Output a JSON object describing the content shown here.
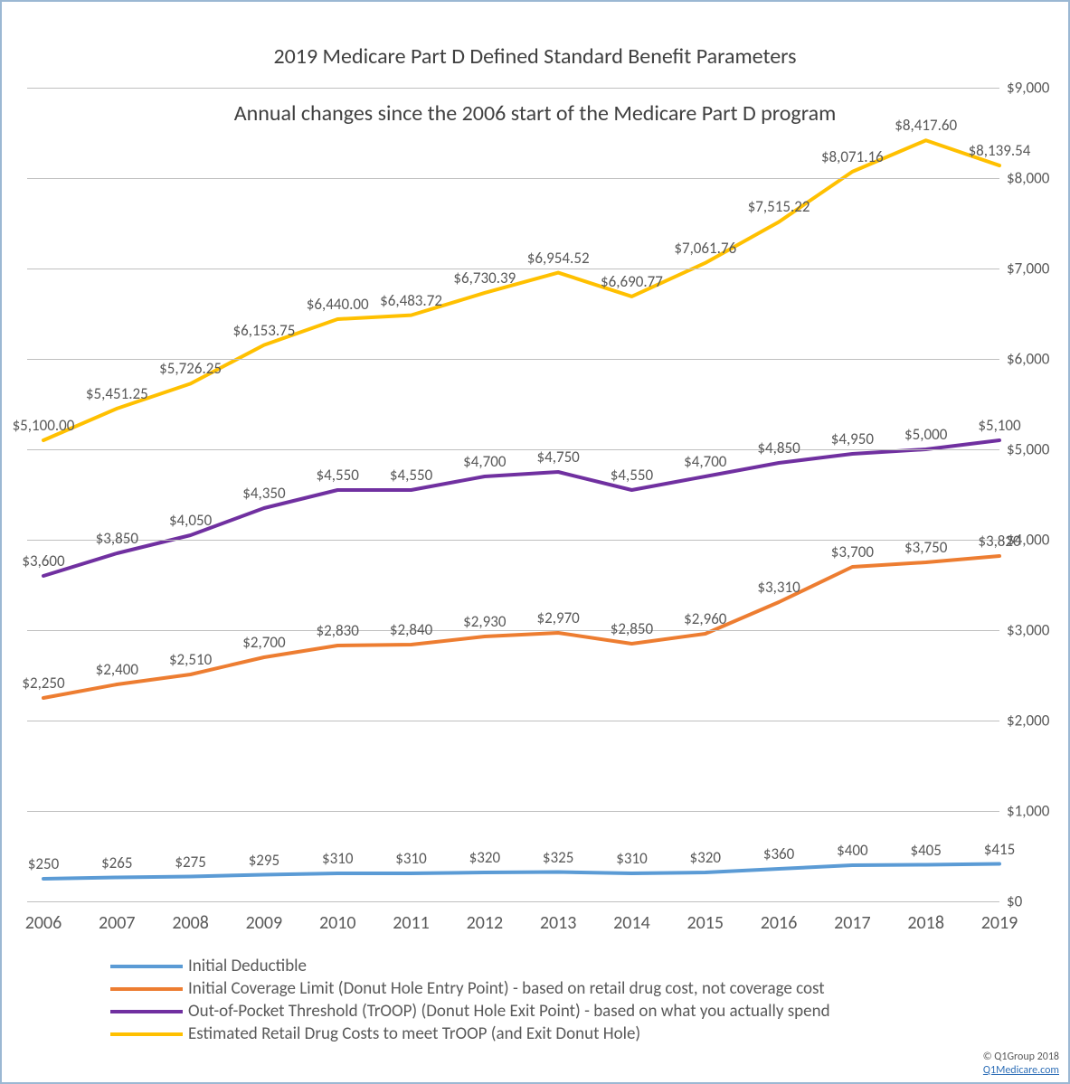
{
  "title_line1": "2019 Medicare Part D Defined Standard Benefit Parameters",
  "title_line2": "Annual changes since the 2006 start of the Medicare Part D program",
  "chart": {
    "type": "line",
    "background_color": "#ffffff",
    "border_color": "#9bb8d3",
    "grid_color": "#bfbfbf",
    "text_color": "#595959",
    "title_fontsize": 24,
    "label_fontsize": 17,
    "axis_fontsize": 20,
    "line_width": 4,
    "ylim": [
      0,
      9000
    ],
    "ytick_step": 1000,
    "y_tick_labels": [
      "$0",
      "$1,000",
      "$2,000",
      "$3,000",
      "$4,000",
      "$5,000",
      "$6,000",
      "$7,000",
      "$8,000",
      "$9,000"
    ],
    "categories": [
      "2006",
      "2007",
      "2008",
      "2009",
      "2010",
      "2011",
      "2012",
      "2013",
      "2014",
      "2015",
      "2016",
      "2017",
      "2018",
      "2019"
    ],
    "left_offset": 18,
    "series": [
      {
        "key": "deductible",
        "name": "Initial Deductible",
        "color": "#5b9bd5",
        "values": [
          250,
          265,
          275,
          295,
          310,
          310,
          320,
          325,
          310,
          320,
          360,
          400,
          405,
          415
        ],
        "labels": [
          "$250",
          "$265",
          "$275",
          "$295",
          "$310",
          "$310",
          "$320",
          "$325",
          "$310",
          "$320",
          "$360",
          "$400",
          "$405",
          "$415"
        ]
      },
      {
        "key": "icl",
        "name": "Initial Coverage Limit (Donut Hole Entry Point) - based on retail drug cost, not coverage cost",
        "color": "#ed7d31",
        "values": [
          2250,
          2400,
          2510,
          2700,
          2830,
          2840,
          2930,
          2970,
          2850,
          2960,
          3310,
          3700,
          3750,
          3820
        ],
        "labels": [
          "$2,250",
          "$2,400",
          "$2,510",
          "$2,700",
          "$2,830",
          "$2,840",
          "$2,930",
          "$2,970",
          "$2,850",
          "$2,960",
          "$3,310",
          "$3,700",
          "$3,750",
          "$3,820"
        ]
      },
      {
        "key": "troop",
        "name": "Out-of-Pocket Threshold (TrOOP) (Donut Hole Exit Point) - based on what you actually spend",
        "color": "#7030a0",
        "values": [
          3600,
          3850,
          4050,
          4350,
          4550,
          4550,
          4700,
          4750,
          4550,
          4700,
          4850,
          4950,
          5000,
          5100
        ],
        "labels": [
          "$3,600",
          "$3,850",
          "$4,050",
          "$4,350",
          "$4,550",
          "$4,550",
          "$4,700",
          "$4,750",
          "$4,550",
          "$4,700",
          "$4,850",
          "$4,950",
          "$5,000",
          "$5,100"
        ]
      },
      {
        "key": "retail",
        "name": "Estimated Retail Drug Costs to meet TrOOP (and Exit Donut Hole)",
        "color": "#ffc000",
        "values": [
          5100.0,
          5451.25,
          5726.25,
          6153.75,
          6440.0,
          6483.72,
          6730.39,
          6954.52,
          6690.77,
          7061.76,
          7515.22,
          8071.16,
          8417.6,
          8139.54
        ],
        "labels": [
          "$5,100.00",
          "$5,451.25",
          "$5,726.25",
          "$6,153.75",
          "$6,440.00",
          "$6,483.72",
          "$6,730.39",
          "$6,954.52",
          "$6,690.77",
          "$7,061.76",
          "$7,515.22",
          "$8,071.16",
          "$8,417.60",
          "$8,139.54"
        ]
      }
    ]
  },
  "copyright_text": "© Q1Group 2018",
  "copyright_link": "Q1Medicare.com"
}
